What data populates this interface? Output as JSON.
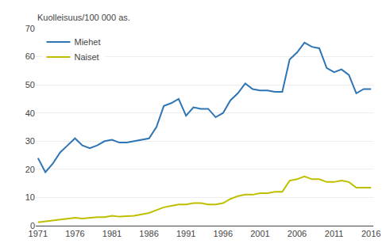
{
  "chart_data": {
    "type": "line",
    "ylabel": "Kuolleisuus/100 000 as.",
    "x": [
      1971,
      1972,
      1973,
      1974,
      1975,
      1976,
      1977,
      1978,
      1979,
      1980,
      1981,
      1982,
      1983,
      1984,
      1985,
      1986,
      1987,
      1988,
      1989,
      1990,
      1991,
      1992,
      1993,
      1994,
      1995,
      1996,
      1997,
      1998,
      1999,
      2000,
      2001,
      2002,
      2003,
      2004,
      2005,
      2006,
      2007,
      2008,
      2009,
      2010,
      2011,
      2012,
      2013,
      2014,
      2015,
      2016
    ],
    "series": [
      {
        "name": "Miehet",
        "color": "#2E75B6",
        "values": [
          24.0,
          19.0,
          22.0,
          26.0,
          28.5,
          31.0,
          28.5,
          27.5,
          28.5,
          30.0,
          30.5,
          29.5,
          29.5,
          30.0,
          30.5,
          31.0,
          35.0,
          42.5,
          43.5,
          45.0,
          39.0,
          42.0,
          41.5,
          41.5,
          38.5,
          40.0,
          44.5,
          47.0,
          50.5,
          48.5,
          48.0,
          48.0,
          47.5,
          47.5,
          59.0,
          61.5,
          65.0,
          63.5,
          63.0,
          56.0,
          54.5,
          55.5,
          53.5,
          47.0,
          48.5,
          48.5
        ]
      },
      {
        "name": "Naiset",
        "color": "#BFBF00",
        "values": [
          1.2,
          1.5,
          1.8,
          2.0,
          2.3,
          2.8,
          2.5,
          2.8,
          3.0,
          3.0,
          3.5,
          3.2,
          3.3,
          3.5,
          4.0,
          4.5,
          5.5,
          6.5,
          7.0,
          7.5,
          7.5,
          8.0,
          8.0,
          7.5,
          7.5,
          8.0,
          9.5,
          10.5,
          11.0,
          11.0,
          11.5,
          11.5,
          12.0,
          12.0,
          16.0,
          16.5,
          17.5,
          16.5,
          16.5,
          15.5,
          15.5,
          16.0,
          15.5,
          13.5,
          13.5,
          13.5
        ]
      }
    ],
    "xlim": [
      1970.7,
      2016.3
    ],
    "xticks": [
      1971,
      1976,
      1981,
      1986,
      1991,
      1996,
      2001,
      2006,
      2011,
      2016
    ],
    "ylim": [
      0,
      70
    ],
    "yticks": [
      0,
      10,
      20,
      30,
      40,
      50,
      60,
      70
    ],
    "grid": true,
    "legend": "upper left"
  }
}
